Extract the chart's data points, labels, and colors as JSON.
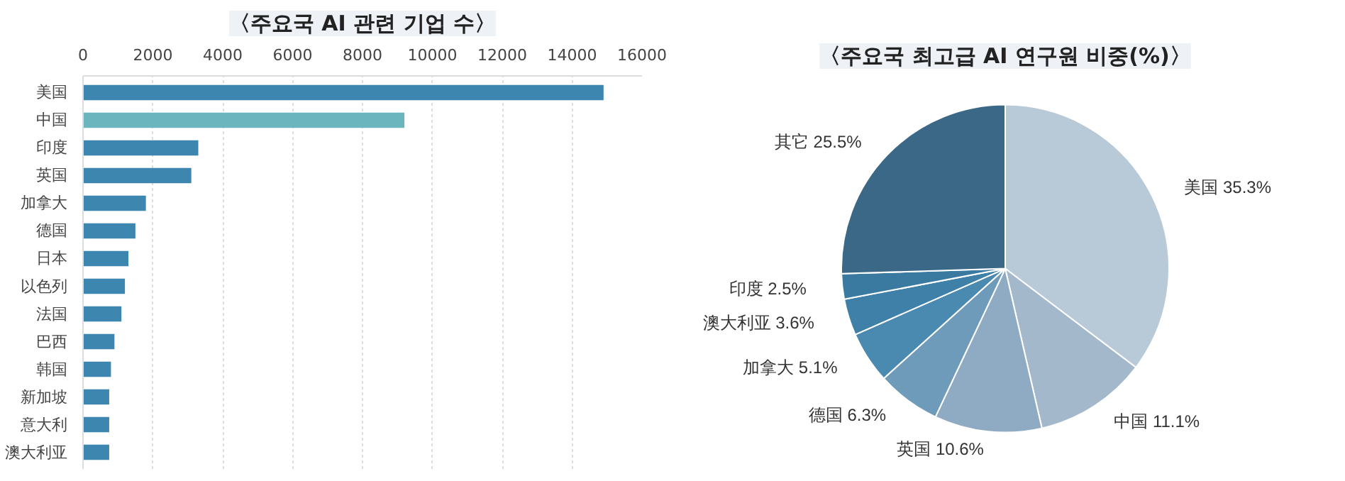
{
  "chart_data": [
    {
      "type": "bar",
      "orientation": "horizontal",
      "title": "〈주요국 AI 관련 기업 수〉",
      "categories": [
        "美国",
        "中国",
        "印度",
        "英国",
        "加拿大",
        "德国",
        "日本",
        "以色列",
        "法国",
        "巴西",
        "韩国",
        "新加坡",
        "意大利",
        "澳大利亚"
      ],
      "values": [
        14900,
        9200,
        3300,
        3100,
        1800,
        1500,
        1300,
        1200,
        1100,
        900,
        800,
        750,
        750,
        750
      ],
      "colors": [
        "#3d86b0",
        "#6bb5be",
        "#3d86b0",
        "#3d86b0",
        "#3d86b0",
        "#3d86b0",
        "#3d86b0",
        "#3d86b0",
        "#3d86b0",
        "#3d86b0",
        "#3d86b0",
        "#3d86b0",
        "#3d86b0",
        "#3d86b0"
      ],
      "xlim": [
        0,
        16000
      ],
      "xticks": [
        0,
        2000,
        4000,
        6000,
        8000,
        10000,
        12000,
        14000,
        16000
      ],
      "grid": "x"
    },
    {
      "type": "pie",
      "title": "〈주요국 최고급 AI 연구원 비중(%)〉",
      "categories": [
        "美国",
        "中国",
        "英国",
        "德国",
        "加拿大",
        "澳大利亚",
        "印度",
        "其它"
      ],
      "values": [
        35.3,
        11.1,
        10.6,
        6.3,
        5.1,
        3.6,
        2.5,
        25.5
      ],
      "value_labels": [
        "35.3%",
        "11.1%",
        "10.6%",
        "6.3%",
        "5.1%",
        "3.6%",
        "2.5%",
        "25.5%"
      ],
      "colors": [
        "#b8c9d8",
        "#a4b8cc",
        "#8fabc4",
        "#6f9bbb",
        "#4a8ab0",
        "#3f80a8",
        "#3b7aa0",
        "#3a6886"
      ]
    }
  ]
}
